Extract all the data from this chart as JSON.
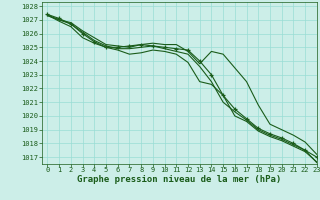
{
  "title": "Graphe pression niveau de la mer (hPa)",
  "bg_color": "#cceee8",
  "grid_color": "#99ddd5",
  "line_color": "#1a5c1a",
  "marker_color": "#1a5c1a",
  "xlim": [
    -0.5,
    23
  ],
  "ylim": [
    1016.5,
    1028.3
  ],
  "yticks": [
    1017,
    1018,
    1019,
    1020,
    1021,
    1022,
    1023,
    1024,
    1025,
    1026,
    1027,
    1028
  ],
  "xticks": [
    0,
    1,
    2,
    3,
    4,
    5,
    6,
    7,
    8,
    9,
    10,
    11,
    12,
    13,
    14,
    15,
    16,
    17,
    18,
    19,
    20,
    21,
    22,
    23
  ],
  "series": [
    [
      1027.3,
      1027.0,
      1026.8,
      1026.2,
      1025.7,
      1025.2,
      1025.1,
      1025.0,
      1025.2,
      1025.3,
      1025.2,
      1025.2,
      1024.7,
      1023.8,
      1024.7,
      1024.5,
      1023.5,
      1022.5,
      1020.8,
      1019.4,
      1019.0,
      1018.6,
      1018.1,
      1017.2,
      1016.7
    ],
    [
      1027.35,
      1026.9,
      1026.5,
      1025.7,
      1025.3,
      1025.0,
      1024.8,
      1024.5,
      1024.6,
      1024.8,
      1024.7,
      1024.5,
      1023.9,
      1022.5,
      1022.3,
      1021.5,
      1020.0,
      1019.6,
      1018.9,
      1018.5,
      1018.2,
      1017.8,
      1017.4,
      1016.65
    ],
    [
      1027.35,
      1027.0,
      1026.7,
      1026.1,
      1025.5,
      1025.1,
      1024.9,
      1024.9,
      1025.0,
      1025.1,
      1024.9,
      1024.7,
      1024.5,
      1023.6,
      1022.5,
      1021.0,
      1020.3,
      1019.7,
      1019.0,
      1018.6,
      1018.3,
      1017.9,
      1017.5,
      1016.6
    ],
    [
      1027.4,
      1027.1,
      1026.7,
      1026.0,
      1025.4,
      1025.0,
      1025.0,
      1025.1,
      1025.2,
      1025.1,
      1025.0,
      1024.9,
      1024.8,
      1024.0,
      1023.0,
      1021.5,
      1020.5,
      1019.8,
      1019.1,
      1018.7,
      1018.4,
      1018.0,
      1017.5,
      1017.0
    ]
  ],
  "marker_series": 3,
  "marker_size": 3.5,
  "line_width": 0.8,
  "title_fontsize": 6.5,
  "tick_fontsize": 5.0,
  "title_color": "#1a5c1a",
  "tick_color": "#1a5c1a",
  "axis_color": "#1a5c1a"
}
